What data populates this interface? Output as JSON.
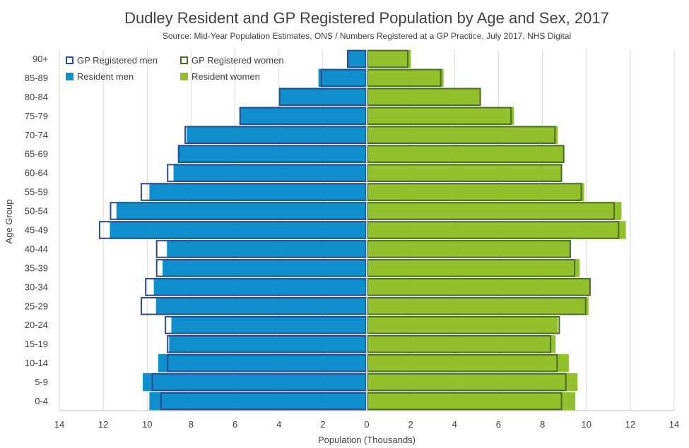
{
  "chart_data": {
    "type": "bar",
    "orientation": "horizontal",
    "layout": "population-pyramid",
    "title": "Dudley Resident and GP Registered Population by Age and Sex, 2017",
    "subtitle": "Source: Mid-Year Population Estimates, ONS / Numbers Registered at a GP Practice, July 2017, NHS Digital",
    "xlabel": "Population (Thousands)",
    "ylabel": "Age Group",
    "xlim": [
      -14,
      14
    ],
    "x_ticks": [
      -14,
      -12,
      -10,
      -8,
      -6,
      -4,
      -2,
      0,
      2,
      4,
      6,
      8,
      10,
      12,
      14
    ],
    "x_tick_labels": [
      "14",
      "12",
      "10",
      "8",
      "6",
      "4",
      "2",
      "0",
      "2",
      "4",
      "6",
      "8",
      "10",
      "12",
      "14"
    ],
    "grid": "vertical",
    "legend_position": "top-left",
    "categories": [
      "0-4",
      "5-9",
      "10-14",
      "15-19",
      "20-24",
      "25-29",
      "30-34",
      "35-39",
      "40-44",
      "45-49",
      "50-54",
      "55-59",
      "60-64",
      "65-69",
      "70-74",
      "75-79",
      "80-84",
      "85-89",
      "90+"
    ],
    "series": [
      {
        "name": "Resident men",
        "style": "filled",
        "side": "left",
        "color": "#0f8fcb",
        "values": [
          9.9,
          10.2,
          9.5,
          9.0,
          8.9,
          9.6,
          9.7,
          9.3,
          9.1,
          11.7,
          11.4,
          9.9,
          8.8,
          8.6,
          8.2,
          5.8,
          4.0,
          2.2,
          0.9
        ]
      },
      {
        "name": "Resident women",
        "style": "filled",
        "side": "right",
        "color": "#93c12e",
        "values": [
          9.5,
          9.6,
          9.2,
          8.6,
          8.7,
          10.1,
          10.2,
          9.7,
          9.3,
          11.8,
          11.6,
          9.9,
          8.9,
          9.0,
          8.7,
          6.7,
          5.2,
          3.5,
          2.0
        ]
      },
      {
        "name": "GP Registered men",
        "style": "outline",
        "side": "left",
        "color": "#2f4a8c",
        "values": [
          9.4,
          9.8,
          9.1,
          9.1,
          9.2,
          10.3,
          10.1,
          9.6,
          9.6,
          12.2,
          11.7,
          10.3,
          9.1,
          8.6,
          8.3,
          5.8,
          4.0,
          2.1,
          0.9
        ]
      },
      {
        "name": "GP Registered women",
        "style": "outline",
        "side": "right",
        "color": "#4a6e2a",
        "values": [
          8.9,
          9.1,
          8.7,
          8.4,
          8.8,
          10.0,
          10.2,
          9.5,
          9.3,
          11.5,
          11.3,
          9.8,
          8.9,
          9.0,
          8.6,
          6.6,
          5.2,
          3.4,
          1.9
        ]
      }
    ]
  },
  "colors": {
    "text": "#404040",
    "grid": "#d9d9d9",
    "axis": "#bfbfbf",
    "resident_men": "#0f8fcb",
    "resident_women": "#93c12e",
    "gp_men": "#2f4a8c",
    "gp_women": "#4a6e2a"
  }
}
